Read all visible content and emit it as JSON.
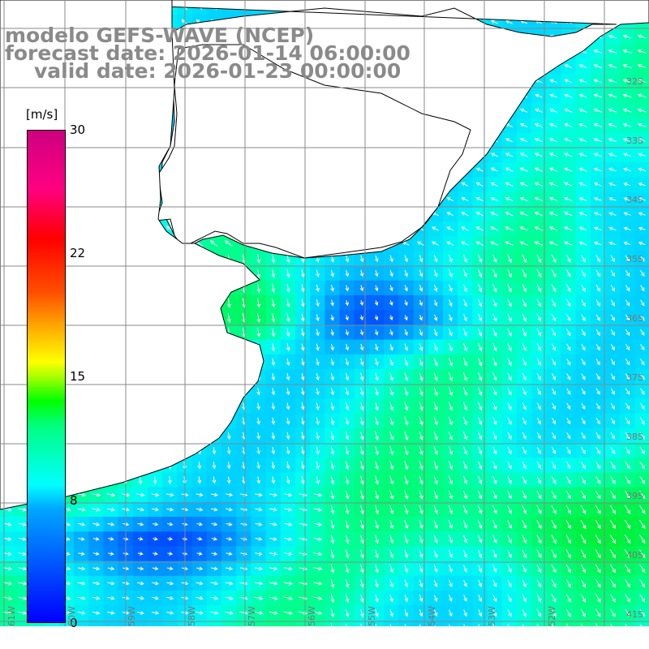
{
  "title": {
    "line1": "modelo GEFS-WAVE (NCEP)",
    "line2": "forecast date: 2026-01-14 06:00:00",
    "line3": "valid date: 2026-01-23 00:00:00"
  },
  "colorbar": {
    "unit": "[m/s]",
    "ticks": [
      "30",
      "22",
      "15",
      "8",
      "0"
    ],
    "stops": [
      "#0000ff",
      "#00a6ff",
      "#00ffff",
      "#00ff7f",
      "#00ff00",
      "#aaff00",
      "#ffff00",
      "#ffaa00",
      "#ff5000",
      "#ff0000",
      "#cc0080"
    ]
  },
  "map": {
    "land_color": "#ffffff",
    "grid_color": "#888888",
    "coast_color": "#000000",
    "arrow_color": "#ffffff",
    "lat_labels": [
      "32S",
      "33S",
      "34S",
      "35S",
      "36S",
      "37S",
      "38S",
      "39S",
      "40S",
      "41S"
    ],
    "lon_labels": [
      "61W",
      "60W",
      "59W",
      "58W",
      "57W",
      "56W",
      "55W",
      "54W",
      "53W",
      "52W"
    ]
  }
}
